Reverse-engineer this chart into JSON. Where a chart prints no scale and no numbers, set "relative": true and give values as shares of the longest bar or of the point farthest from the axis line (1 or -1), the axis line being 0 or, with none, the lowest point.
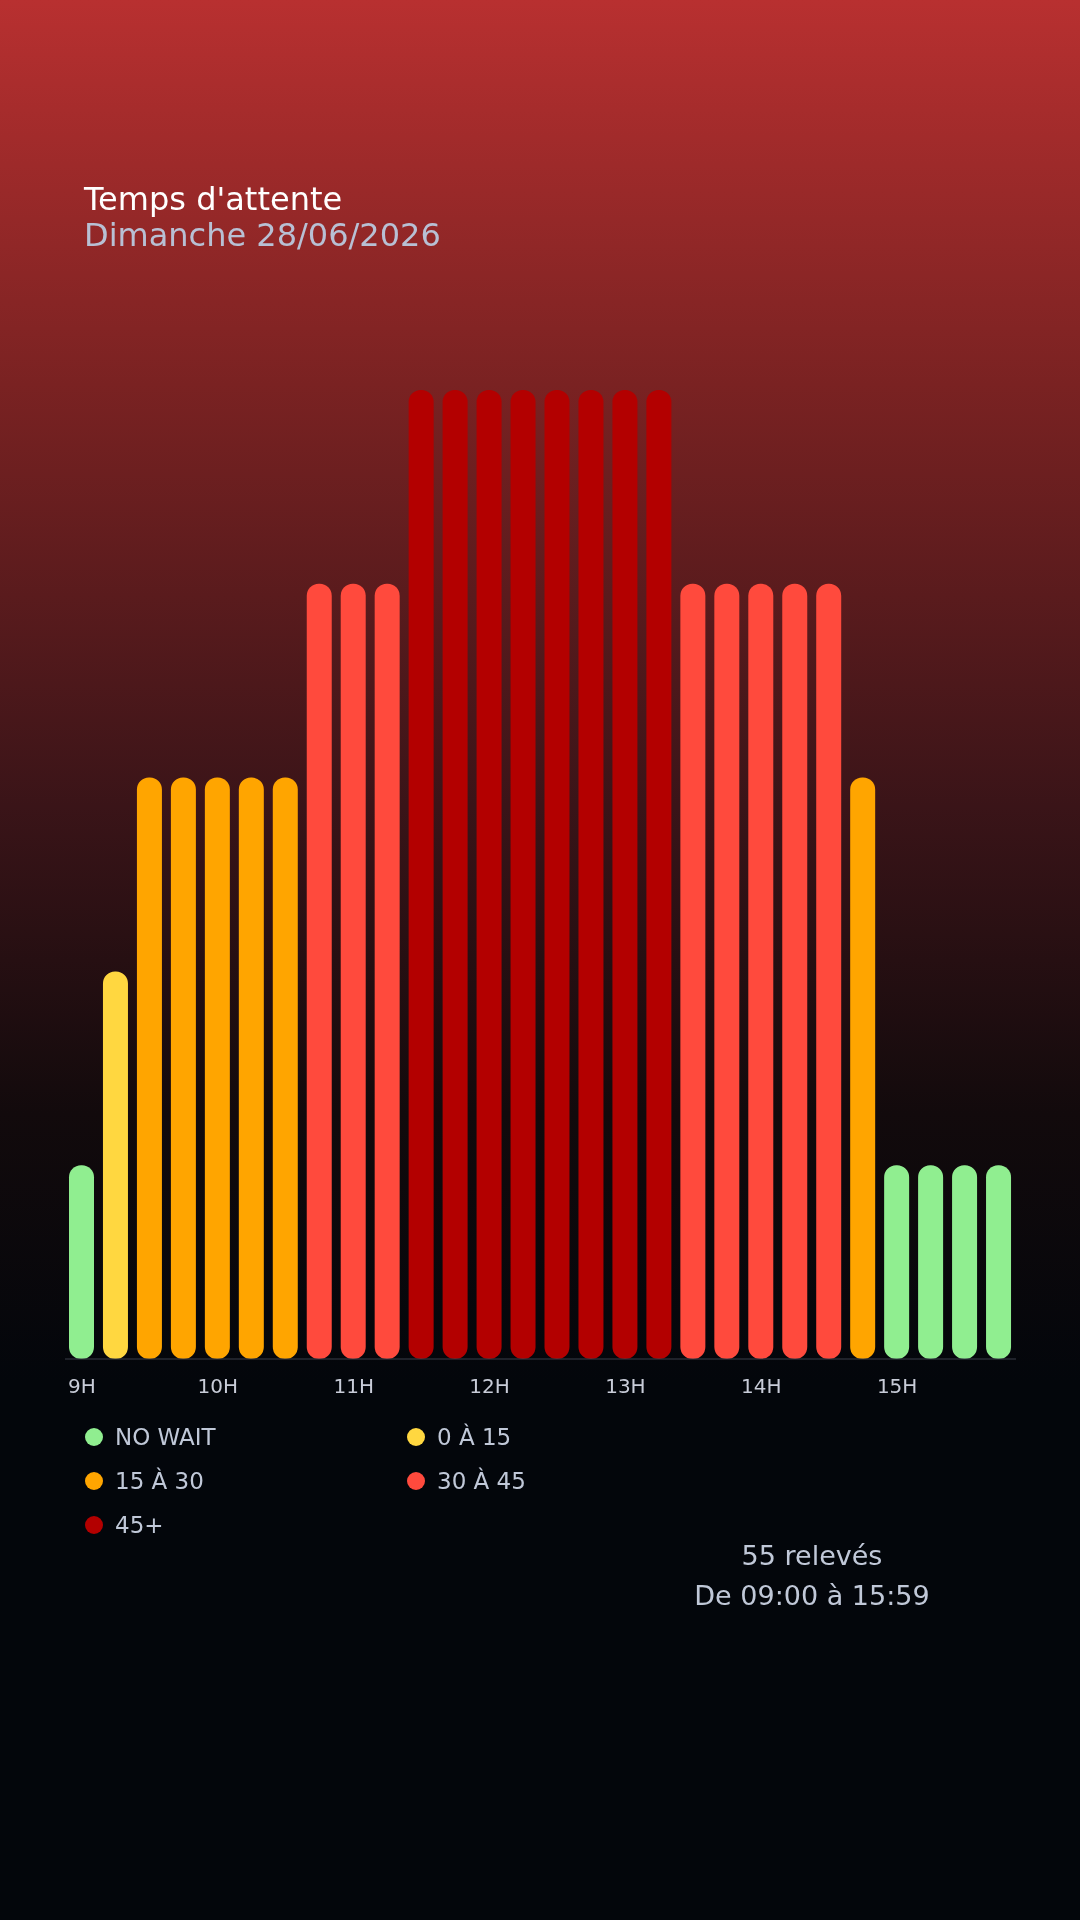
{
  "chart_data": {
    "type": "bar",
    "title": "Temps d'attente",
    "subtitle": "Dimanche 28/06/2026",
    "relative": true,
    "stacked": true,
    "legend": "bottom",
    "categories": [
      "9H",
      null,
      null,
      null,
      "10H",
      null,
      null,
      null,
      "11H",
      null,
      null,
      null,
      "12H",
      null,
      null,
      null,
      "13H",
      null,
      null,
      null,
      "14H",
      null,
      null,
      null,
      "15H",
      null,
      null,
      null
    ],
    "series": [
      {
        "name": "NO WAIT",
        "color": "#90ee90",
        "values": [
          0.2,
          null,
          null,
          null,
          null,
          null,
          null,
          null,
          null,
          null,
          null,
          null,
          null,
          null,
          null,
          null,
          null,
          null,
          null,
          null,
          null,
          null,
          null,
          null,
          0.2,
          0.2,
          0.2,
          0.2
        ]
      },
      {
        "name": "0 À 15",
        "color": "#ffd740",
        "values": [
          null,
          0.4,
          null,
          null,
          null,
          null,
          null,
          null,
          null,
          null,
          null,
          null,
          null,
          null,
          null,
          null,
          null,
          null,
          null,
          null,
          null,
          null,
          null,
          null,
          null,
          null,
          null,
          null
        ]
      },
      {
        "name": "15 À 30",
        "color": "#ffa500",
        "values": [
          null,
          null,
          0.6,
          0.6,
          0.6,
          0.6,
          0.6,
          null,
          null,
          null,
          null,
          null,
          null,
          null,
          null,
          null,
          null,
          null,
          null,
          null,
          null,
          null,
          null,
          0.6,
          null,
          null,
          null,
          null
        ]
      },
      {
        "name": "30 À 45",
        "color": "#ff4a3d",
        "values": [
          null,
          null,
          null,
          null,
          null,
          null,
          null,
          0.8,
          0.8,
          0.8,
          null,
          null,
          null,
          null,
          null,
          null,
          null,
          null,
          0.8,
          0.8,
          0.8,
          0.8,
          0.8,
          null,
          null,
          null,
          null,
          null
        ]
      },
      {
        "name": "45+",
        "color": "#b30000",
        "values": [
          null,
          null,
          null,
          null,
          null,
          null,
          null,
          null,
          null,
          null,
          1,
          1,
          1,
          1,
          1,
          1,
          1,
          1,
          null,
          null,
          null,
          null,
          null,
          null,
          null,
          null,
          null,
          null
        ]
      }
    ],
    "annotations": [
      "55 relevés",
      "De 09:00 à 15:59"
    ]
  }
}
